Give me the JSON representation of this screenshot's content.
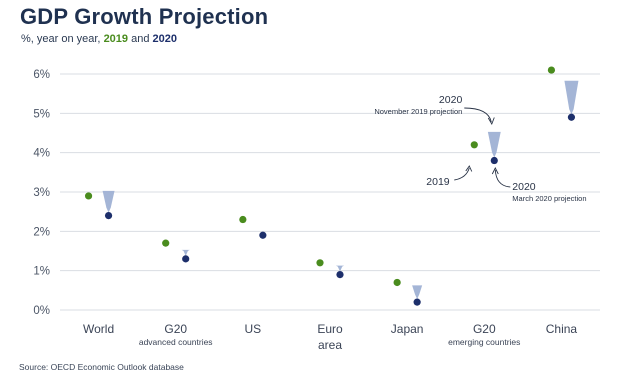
{
  "header": {
    "title": "GDP Growth Projection",
    "subtitle_prefix": "%, year on year,",
    "subtitle_2019": "2019",
    "subtitle_and": "and",
    "subtitle_2020": "2020"
  },
  "source": "Source: OECD Economic Outlook database",
  "colors": {
    "series_2019": "#4a8c1e",
    "series_2020": "#1d2f6b",
    "arrow": "#9fb1d4",
    "grid": "#d9dde3"
  },
  "chart_data": {
    "type": "scatter",
    "ylim": [
      0,
      6
    ],
    "y_ticks": [
      "0%",
      "1%",
      "2%",
      "3%",
      "4%",
      "5%",
      "6%"
    ],
    "categories": [
      {
        "label": "World",
        "sublabel": ""
      },
      {
        "label": "G20",
        "sublabel": "advanced countries"
      },
      {
        "label": "US",
        "sublabel": ""
      },
      {
        "label": "Euro",
        "sublabel": "area"
      },
      {
        "label": "Japan",
        "sublabel": ""
      },
      {
        "label": "G20",
        "sublabel": "emerging countries"
      },
      {
        "label": "China",
        "sublabel": ""
      }
    ],
    "series": [
      {
        "name": "2019",
        "values": [
          2.9,
          1.7,
          2.3,
          1.2,
          0.7,
          4.2,
          6.1
        ]
      },
      {
        "name": "2020_november_projection",
        "values": [
          2.9,
          1.4,
          null,
          1.0,
          0.5,
          4.4,
          5.7
        ]
      },
      {
        "name": "2020",
        "values": [
          2.4,
          1.3,
          1.9,
          0.9,
          0.2,
          3.8,
          4.9
        ]
      }
    ],
    "annotations": [
      {
        "year": "2020",
        "text": "November 2019 projection"
      },
      {
        "year": "2019",
        "text": ""
      },
      {
        "year": "2020",
        "text": "March 2020 projection"
      }
    ],
    "grid": true,
    "legend": "subtitle"
  }
}
